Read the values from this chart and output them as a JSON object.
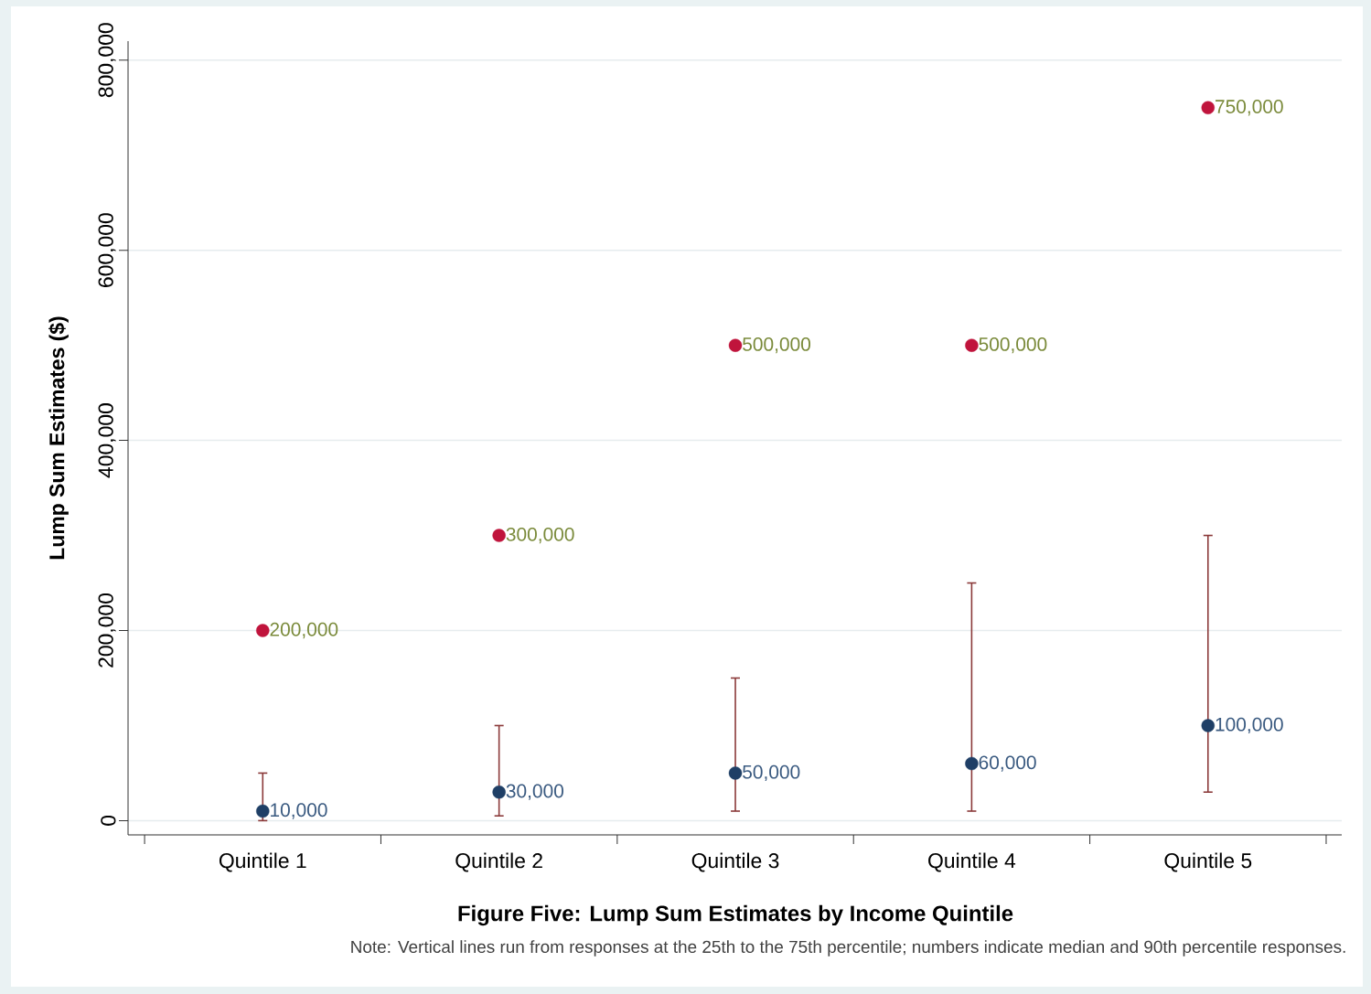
{
  "chart_data": {
    "type": "scatter",
    "title": "Figure Five: Lump Sum Estimates by Income Quintile",
    "ylabel": "Lump Sum Estimates ($)",
    "annotations": [
      "Note: Vertical lines run from responses at the 25th to the 75th percentile; numbers indicate median and 90th percentile responses."
    ],
    "categories": [
      "Quintile 1",
      "Quintile 2",
      "Quintile 3",
      "Quintile 4",
      "Quintile 5"
    ],
    "series": [
      {
        "color": "#1f3f66",
        "values": [
          10000,
          30000,
          50000,
          60000,
          100000
        ],
        "errors": [
          [
            0,
            50000
          ],
          [
            5000,
            100000
          ],
          [
            10000,
            150000
          ],
          [
            10000,
            250000
          ],
          [
            30000,
            300000
          ]
        ],
        "value_labels": [
          "10,000",
          "30,000",
          "50,000",
          "60,000",
          "100,000"
        ]
      },
      {
        "color": "#c0143c",
        "values": [
          200000,
          300000,
          500000,
          500000,
          750000
        ],
        "value_labels": [
          "200,000",
          "300,000",
          "500,000",
          "500,000",
          "750,000"
        ]
      }
    ],
    "ylim": [
      -15000,
      820000
    ],
    "yticks": [
      0,
      {
        "value": 200000,
        "label": "200,000"
      },
      {
        "value": 400000,
        "label": "400,000"
      },
      {
        "value": 600000,
        "label": "600,000"
      },
      {
        "value": 800000,
        "label": "800,000"
      }
    ],
    "grid": "y",
    "marker": "circle"
  }
}
